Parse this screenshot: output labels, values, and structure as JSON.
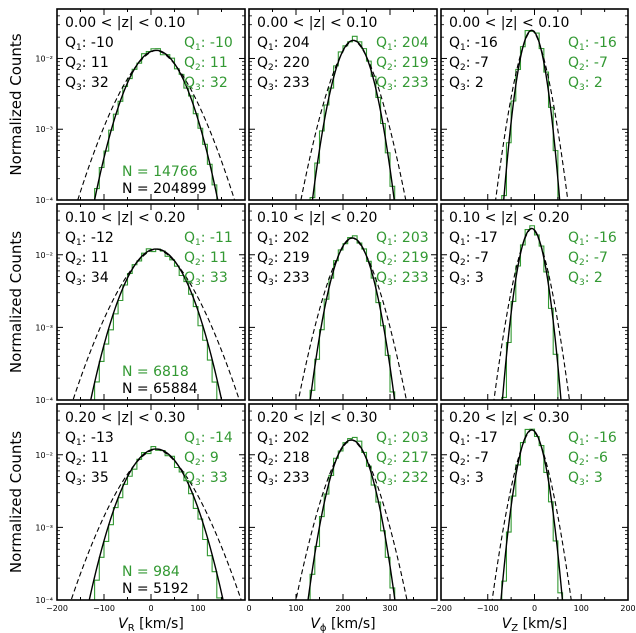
{
  "colors": {
    "black_series": "#000000",
    "green_series": "#339933"
  },
  "chart_data": {
    "type": "line",
    "layout": {
      "rows": 3,
      "cols": 3
    },
    "y_scale": "log",
    "ylim": [
      0.0001,
      0.05
    ],
    "ylabel": "Normalized Counts",
    "y_ticks": [
      0.0001,
      0.001,
      0.01
    ],
    "y_tick_labels": [
      "10⁻⁴",
      "10⁻³",
      "10⁻²"
    ],
    "columns": [
      {
        "xlabel_main": "V",
        "xlabel_sub": "R",
        "xlabel_unit": " [km/s]",
        "xlim": [
          -200,
          200
        ],
        "x_ticks": [
          -200,
          -100,
          0,
          100
        ],
        "x_tick_labels": [
          "−200",
          "−100",
          "0",
          "100"
        ]
      },
      {
        "xlabel_main": "V",
        "xlabel_sub": "ϕ",
        "xlabel_unit": " [km/s]",
        "xlim": [
          0,
          400
        ],
        "x_ticks": [
          0,
          100,
          200,
          300
        ],
        "x_tick_labels": [
          "0",
          "100",
          "200",
          "300"
        ]
      },
      {
        "xlabel_main": "V",
        "xlabel_sub": "Z",
        "xlabel_unit": " [km/s]",
        "xlim": [
          -200,
          200
        ],
        "x_ticks": [
          -200,
          -100,
          0,
          100,
          200
        ],
        "x_tick_labels": [
          "−200",
          "−100",
          "0",
          "100",
          "200"
        ]
      }
    ],
    "panels": [
      {
        "row": 0,
        "col": 0,
        "zrange": "0.00 < |z| < 0.10",
        "q_black": [
          "-10",
          "11",
          "32"
        ],
        "q_green": [
          "-10",
          "11",
          "32"
        ],
        "n_green": "N = 14766",
        "n_black": "N = 204899",
        "mu": 11,
        "sigma_black": 42,
        "sigma_green": 42,
        "peak_black": 0.013,
        "peak_green": 0.013
      },
      {
        "row": 0,
        "col": 1,
        "zrange": "0.00 < |z| < 0.10",
        "q_black": [
          "204",
          "220",
          "233"
        ],
        "q_green": [
          "204",
          "219",
          "233"
        ],
        "mu": 222,
        "sigma_black": 27,
        "sigma_green": 27,
        "peak_black": 0.018,
        "peak_green": 0.019
      },
      {
        "row": 0,
        "col": 2,
        "zrange": "0.00 < |z| < 0.10",
        "q_black": [
          "-16",
          "-7",
          "2"
        ],
        "q_green": [
          "-16",
          "-7",
          "2"
        ],
        "mu": -6,
        "sigma_black": 18,
        "sigma_green": 18,
        "peak_black": 0.025,
        "peak_green": 0.026
      },
      {
        "row": 1,
        "col": 0,
        "zrange": "0.10 < |z| < 0.20",
        "q_black": [
          "-12",
          "11",
          "34"
        ],
        "q_green": [
          "-11",
          "11",
          "33"
        ],
        "n_green": "N = 6818",
        "n_black": "N = 65884",
        "mu": 11,
        "sigma_black": 45,
        "sigma_green": 43,
        "peak_black": 0.012,
        "peak_green": 0.012
      },
      {
        "row": 1,
        "col": 1,
        "zrange": "0.10 < |z| < 0.20",
        "q_black": [
          "202",
          "219",
          "233"
        ],
        "q_green": [
          "203",
          "219",
          "233"
        ],
        "mu": 220,
        "sigma_black": 28,
        "sigma_green": 27,
        "peak_black": 0.017,
        "peak_green": 0.018
      },
      {
        "row": 1,
        "col": 2,
        "zrange": "0.10 < |z| < 0.20",
        "q_black": [
          "-17",
          "-7",
          "3"
        ],
        "q_green": [
          "-16",
          "-7",
          "2"
        ],
        "mu": -6,
        "sigma_black": 19,
        "sigma_green": 18,
        "peak_black": 0.023,
        "peak_green": 0.024
      },
      {
        "row": 2,
        "col": 0,
        "zrange": "0.20 < |z| < 0.30",
        "q_black": [
          "-13",
          "11",
          "35"
        ],
        "q_green": [
          "-14",
          "9",
          "33"
        ],
        "n_green": "N = 984",
        "n_black": "N = 5192",
        "mu": 11,
        "sigma_black": 46,
        "sigma_green": 44,
        "peak_black": 0.012,
        "peak_green": 0.012
      },
      {
        "row": 2,
        "col": 1,
        "zrange": "0.20 < |z| < 0.30",
        "q_black": [
          "202",
          "218",
          "233"
        ],
        "q_green": [
          "203",
          "217",
          "232"
        ],
        "mu": 218,
        "sigma_black": 29,
        "sigma_green": 28,
        "peak_black": 0.016,
        "peak_green": 0.017
      },
      {
        "row": 2,
        "col": 2,
        "zrange": "0.20 < |z| < 0.30",
        "q_black": [
          "-17",
          "-7",
          "3"
        ],
        "q_green": [
          "-16",
          "-6",
          "3"
        ],
        "mu": -6,
        "sigma_black": 20,
        "sigma_green": 19,
        "peak_black": 0.022,
        "peak_green": 0.023
      }
    ]
  }
}
